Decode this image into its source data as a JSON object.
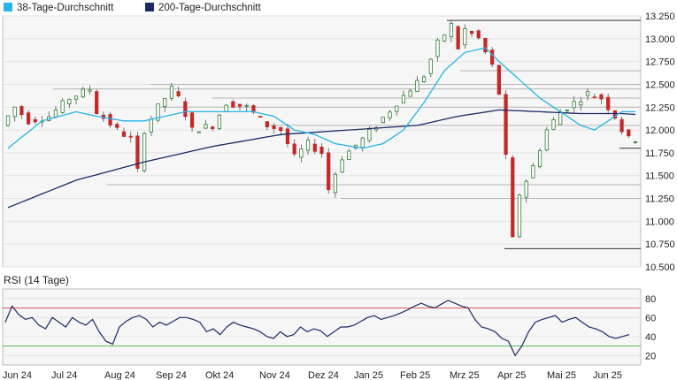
{
  "colors": {
    "ma38": "#27b3e8",
    "ma200": "#1b2a66",
    "candle_up": "#2e7d32",
    "candle_down": "#c62828",
    "rsi_line": "#1b2a66",
    "rsi_upper": "#e05a5a",
    "rsi_lower": "#5bb85b",
    "support_line": "#555555"
  },
  "legend": [
    {
      "label": "38-Tage-Durchschnitt",
      "color": "#27b3e8"
    },
    {
      "label": "200-Tage-Durchschnitt",
      "color": "#1b2a66"
    }
  ],
  "rsi_title": "RSI (14 Tage)",
  "chart_data": [
    {
      "type": "candlestick",
      "ylim": [
        10.5,
        13.25
      ],
      "y_ticks": [
        "13.250",
        "13.000",
        "12.750",
        "12.500",
        "12.250",
        "12.000",
        "11.750",
        "11.500",
        "11.250",
        "11.000",
        "10.750",
        "10.500"
      ],
      "x_ticks": [
        "Jun 24",
        "Jul 24",
        "Aug 24",
        "Sep 24",
        "Okt 24",
        "Nov 24",
        "Dez 24",
        "Jan 25",
        "Feb 25",
        "Mrz 25",
        "Apr 25",
        "Mai 25",
        "Jun 25"
      ],
      "horizontal_levels": [
        13.2,
        12.65,
        12.5,
        12.45,
        12.35,
        12.25,
        11.4,
        11.25,
        10.7,
        11.8,
        12.05
      ],
      "price_path": [
        [
          0,
          12.05
        ],
        [
          2,
          12.25
        ],
        [
          4,
          12.1
        ],
        [
          7,
          12.15
        ],
        [
          10,
          12.35
        ],
        [
          13,
          12.45
        ],
        [
          14,
          12.2
        ],
        [
          17,
          12.0
        ],
        [
          19,
          11.9
        ],
        [
          20,
          11.55
        ],
        [
          21,
          12.0
        ],
        [
          23,
          12.25
        ],
        [
          25,
          12.45
        ],
        [
          26,
          12.35
        ],
        [
          28,
          12.0
        ],
        [
          31,
          12.05
        ],
        [
          33,
          12.3
        ],
        [
          36,
          12.25
        ],
        [
          39,
          12.05
        ],
        [
          41,
          12.0
        ],
        [
          43,
          11.7
        ],
        [
          45,
          11.85
        ],
        [
          47,
          11.75
        ],
        [
          48,
          11.35
        ],
        [
          50,
          11.7
        ],
        [
          53,
          11.9
        ],
        [
          55,
          12.05
        ],
        [
          58,
          12.3
        ],
        [
          60,
          12.45
        ],
        [
          62,
          12.6
        ],
        [
          64,
          12.95
        ],
        [
          66,
          13.15
        ],
        [
          67,
          12.9
        ],
        [
          68,
          13.1
        ],
        [
          70,
          13.0
        ],
        [
          72,
          12.7
        ],
        [
          73,
          12.4
        ],
        [
          74,
          11.7
        ],
        [
          75,
          10.8
        ],
        [
          76,
          11.3
        ],
        [
          78,
          11.6
        ],
        [
          80,
          12.0
        ],
        [
          82,
          12.2
        ],
        [
          84,
          12.3
        ],
        [
          86,
          12.4
        ],
        [
          88,
          12.35
        ],
        [
          90,
          12.15
        ],
        [
          91,
          12.0
        ],
        [
          92,
          11.9
        ]
      ],
      "ma38_path": [
        [
          0,
          11.8
        ],
        [
          5,
          12.1
        ],
        [
          10,
          12.2
        ],
        [
          13,
          12.15
        ],
        [
          17,
          12.1
        ],
        [
          20,
          12.1
        ],
        [
          23,
          12.15
        ],
        [
          26,
          12.2
        ],
        [
          30,
          12.2
        ],
        [
          33,
          12.2
        ],
        [
          36,
          12.2
        ],
        [
          39,
          12.15
        ],
        [
          42,
          12.0
        ],
        [
          45,
          11.95
        ],
        [
          48,
          11.85
        ],
        [
          52,
          11.8
        ],
        [
          55,
          11.85
        ],
        [
          58,
          12.0
        ],
        [
          61,
          12.3
        ],
        [
          64,
          12.65
        ],
        [
          67,
          12.85
        ],
        [
          70,
          12.9
        ],
        [
          72,
          12.75
        ],
        [
          75,
          12.55
        ],
        [
          78,
          12.35
        ],
        [
          81,
          12.2
        ],
        [
          84,
          12.05
        ],
        [
          86,
          12.0
        ],
        [
          88,
          12.1
        ],
        [
          90,
          12.2
        ],
        [
          92,
          12.2
        ]
      ],
      "ma200_path": [
        [
          0,
          11.15
        ],
        [
          10,
          11.45
        ],
        [
          20,
          11.65
        ],
        [
          30,
          11.82
        ],
        [
          40,
          11.95
        ],
        [
          50,
          12.0
        ],
        [
          60,
          12.05
        ],
        [
          66,
          12.15
        ],
        [
          72,
          12.22
        ],
        [
          78,
          12.2
        ],
        [
          84,
          12.18
        ],
        [
          90,
          12.18
        ],
        [
          92,
          12.17
        ]
      ]
    },
    {
      "type": "line",
      "name": "RSI (14 Tage)",
      "ylim": [
        10,
        90
      ],
      "y_ticks": [
        "80",
        "60",
        "40",
        "20"
      ],
      "reference_lines": [
        70,
        30
      ],
      "values": [
        55,
        72,
        63,
        58,
        60,
        52,
        48,
        60,
        55,
        50,
        60,
        55,
        52,
        58,
        45,
        35,
        32,
        50,
        56,
        60,
        62,
        58,
        50,
        55,
        52,
        56,
        60,
        60,
        58,
        55,
        45,
        48,
        42,
        50,
        55,
        52,
        50,
        48,
        45,
        40,
        38,
        45,
        40,
        42,
        50,
        45,
        48,
        46,
        40,
        45,
        50,
        50,
        52,
        56,
        60,
        62,
        58,
        60,
        62,
        65,
        68,
        72,
        75,
        72,
        70,
        74,
        78,
        75,
        72,
        70,
        58,
        50,
        48,
        45,
        38,
        35,
        20,
        30,
        45,
        55,
        58,
        60,
        62,
        55,
        58,
        60,
        55,
        50,
        48,
        45,
        40,
        38,
        40,
        42
      ]
    }
  ]
}
